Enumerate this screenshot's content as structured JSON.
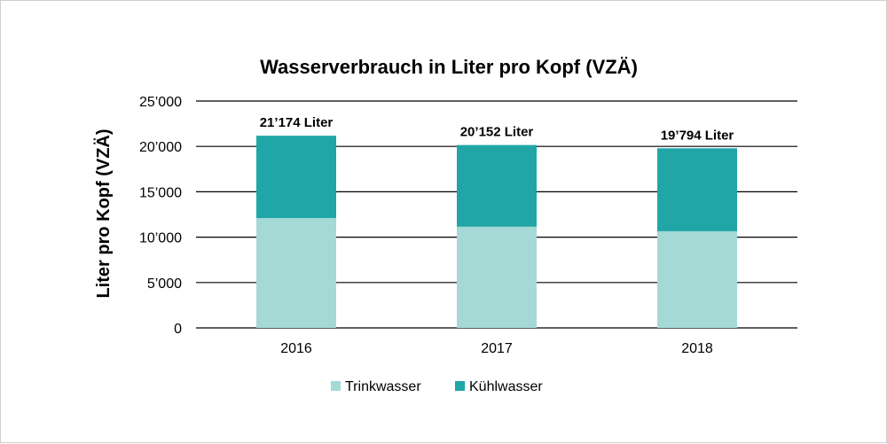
{
  "chart_data": {
    "type": "bar",
    "stacked": true,
    "title": "Wasserverbrauch in Liter pro Kopf (VZÄ)",
    "xlabel": "",
    "ylabel": "Liter pro Kopf (VZÄ)",
    "categories": [
      "2016",
      "2017",
      "2018"
    ],
    "series": [
      {
        "name": "Trinkwasser",
        "color": "#a4d9d6",
        "values": [
          12100,
          11150,
          10650
        ]
      },
      {
        "name": "Kühlwasser",
        "color": "#20a6a6",
        "values": [
          9074,
          9002,
          9144
        ]
      }
    ],
    "totals": [
      21174,
      20152,
      19794
    ],
    "total_labels": [
      "21’174 Liter",
      "20’152 Liter",
      "19’794 Liter"
    ],
    "ylim": [
      0,
      25000
    ],
    "yticks": [
      0,
      5000,
      10000,
      15000,
      20000,
      25000
    ],
    "ytick_labels": [
      "0",
      "5’000",
      "10’000",
      "15’000",
      "20’000",
      "25’000"
    ],
    "grid": true,
    "legend_position": "bottom"
  }
}
